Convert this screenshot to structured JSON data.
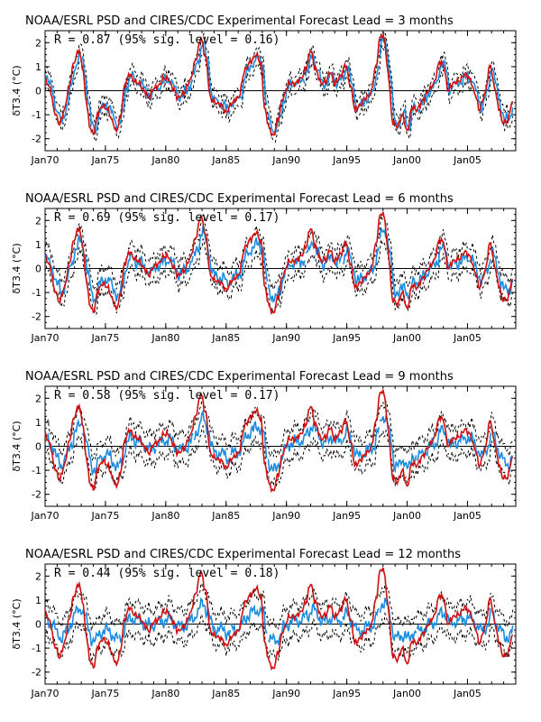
{
  "chart_data": [
    {
      "type": "line",
      "title": "NOAA/ESRL PSD and CIRES/CDC Experimental Forecast Lead = 3 months",
      "annotation": "R = 0.87 (95% sig. level = 0.16)",
      "lead_months": 3,
      "ylabel": "δT3.4 (°C)",
      "ylim": [
        -2.5,
        2.5
      ],
      "xlim": [
        1970,
        2009
      ],
      "xticks": [
        "Jan70",
        "Jan75",
        "Jan80",
        "Jan85",
        "Jan90",
        "Jan95",
        "Jan00",
        "Jan05"
      ],
      "yticks": [
        -2,
        -1,
        0,
        1,
        2
      ],
      "zero_line": true,
      "series": [
        {
          "role": "observed",
          "color": "#d01010"
        },
        {
          "role": "forecast",
          "color": "#1a8ce0",
          "skill": 0.92,
          "noise": 0.15
        },
        {
          "role": "uncertainty",
          "color": "#000000",
          "style": "dashed",
          "spread": 0.35
        }
      ]
    },
    {
      "type": "line",
      "title": "NOAA/ESRL PSD and CIRES/CDC Experimental Forecast Lead = 6 months",
      "annotation": "R = 0.69 (95% sig. level = 0.17)",
      "lead_months": 6,
      "ylabel": "δT3.4 (°C)",
      "ylim": [
        -2.5,
        2.5
      ],
      "xlim": [
        1970,
        2009
      ],
      "xticks": [
        "Jan70",
        "Jan75",
        "Jan80",
        "Jan85",
        "Jan90",
        "Jan95",
        "Jan00",
        "Jan05"
      ],
      "yticks": [
        -2,
        -1,
        0,
        1,
        2
      ],
      "zero_line": true,
      "series": [
        {
          "role": "observed",
          "color": "#d01010"
        },
        {
          "role": "forecast",
          "color": "#1a8ce0",
          "skill": 0.7,
          "noise": 0.22
        },
        {
          "role": "uncertainty",
          "color": "#000000",
          "style": "dashed",
          "spread": 0.5
        }
      ]
    },
    {
      "type": "line",
      "title": "NOAA/ESRL PSD and CIRES/CDC Experimental Forecast Lead = 9 months",
      "annotation": "R = 0.58 (95% sig. level = 0.17)",
      "lead_months": 9,
      "ylabel": "δT3.4 (°C)",
      "ylim": [
        -2.5,
        2.5
      ],
      "xlim": [
        1970,
        2009
      ],
      "xticks": [
        "Jan70",
        "Jan75",
        "Jan80",
        "Jan85",
        "Jan90",
        "Jan95",
        "Jan00",
        "Jan05"
      ],
      "yticks": [
        -2,
        -1,
        0,
        1,
        2
      ],
      "zero_line": true,
      "series": [
        {
          "role": "observed",
          "color": "#d01010"
        },
        {
          "role": "forecast",
          "color": "#1a8ce0",
          "skill": 0.55,
          "noise": 0.25
        },
        {
          "role": "uncertainty",
          "color": "#000000",
          "style": "dashed",
          "spread": 0.6
        }
      ]
    },
    {
      "type": "line",
      "title": "NOAA/ESRL PSD and CIRES/CDC Experimental Forecast Lead = 12 months",
      "annotation": "R = 0.44 (95% sig. level = 0.18)",
      "lead_months": 12,
      "ylabel": "δT3.4 (°C)",
      "ylim": [
        -2.5,
        2.5
      ],
      "xlim": [
        1970,
        2009
      ],
      "xticks": [
        "Jan70",
        "Jan75",
        "Jan80",
        "Jan85",
        "Jan90",
        "Jan95",
        "Jan00",
        "Jan05"
      ],
      "yticks": [
        -2,
        -1,
        0,
        1,
        2
      ],
      "zero_line": true,
      "series": [
        {
          "role": "observed",
          "color": "#d01010"
        },
        {
          "role": "forecast",
          "color": "#1a8ce0",
          "skill": 0.4,
          "noise": 0.25
        },
        {
          "role": "uncertainty",
          "color": "#000000",
          "style": "dashed",
          "spread": 0.65
        }
      ]
    }
  ],
  "observed_anomaly_keyframes": [
    [
      1970.0,
      0.5
    ],
    [
      1970.4,
      0.1
    ],
    [
      1970.8,
      -0.9
    ],
    [
      1971.2,
      -1.4
    ],
    [
      1971.6,
      -0.8
    ],
    [
      1972.0,
      0.2
    ],
    [
      1972.4,
      1.2
    ],
    [
      1972.8,
      1.7
    ],
    [
      1973.1,
      1.0
    ],
    [
      1973.4,
      -0.4
    ],
    [
      1973.7,
      -1.5
    ],
    [
      1974.0,
      -1.8
    ],
    [
      1974.4,
      -0.9
    ],
    [
      1974.8,
      -0.6
    ],
    [
      1975.2,
      -0.8
    ],
    [
      1975.6,
      -1.3
    ],
    [
      1975.9,
      -1.7
    ],
    [
      1976.2,
      -1.2
    ],
    [
      1976.6,
      0.2
    ],
    [
      1977.0,
      0.7
    ],
    [
      1977.4,
      0.4
    ],
    [
      1977.8,
      0.3
    ],
    [
      1978.2,
      0.0
    ],
    [
      1978.6,
      -0.3
    ],
    [
      1979.0,
      0.1
    ],
    [
      1979.4,
      0.2
    ],
    [
      1979.8,
      0.5
    ],
    [
      1980.2,
      0.5
    ],
    [
      1980.6,
      0.1
    ],
    [
      1981.0,
      -0.3
    ],
    [
      1981.5,
      -0.1
    ],
    [
      1982.0,
      0.4
    ],
    [
      1982.5,
      1.3
    ],
    [
      1982.9,
      2.2
    ],
    [
      1983.3,
      1.4
    ],
    [
      1983.7,
      -0.3
    ],
    [
      1984.1,
      -0.5
    ],
    [
      1984.6,
      -0.6
    ],
    [
      1985.0,
      -0.9
    ],
    [
      1985.5,
      -0.5
    ],
    [
      1986.0,
      -0.3
    ],
    [
      1986.6,
      0.9
    ],
    [
      1987.0,
      1.2
    ],
    [
      1987.5,
      1.5
    ],
    [
      1987.9,
      1.1
    ],
    [
      1988.2,
      -0.8
    ],
    [
      1988.6,
      -1.6
    ],
    [
      1988.9,
      -1.9
    ],
    [
      1989.3,
      -1.2
    ],
    [
      1989.7,
      -0.3
    ],
    [
      1990.2,
      0.3
    ],
    [
      1990.7,
      0.3
    ],
    [
      1991.2,
      0.5
    ],
    [
      1991.6,
      0.9
    ],
    [
      1992.0,
      1.7
    ],
    [
      1992.4,
      0.9
    ],
    [
      1992.9,
      0.3
    ],
    [
      1993.3,
      0.4
    ],
    [
      1993.6,
      0.8
    ],
    [
      1994.0,
      0.3
    ],
    [
      1994.5,
      0.6
    ],
    [
      1994.9,
      1.1
    ],
    [
      1995.3,
      0.2
    ],
    [
      1995.7,
      -0.8
    ],
    [
      1996.1,
      -0.6
    ],
    [
      1996.6,
      -0.3
    ],
    [
      1997.0,
      -0.1
    ],
    [
      1997.4,
      1.0
    ],
    [
      1997.8,
      2.3
    ],
    [
      1998.1,
      2.2
    ],
    [
      1998.4,
      0.8
    ],
    [
      1998.8,
      -1.3
    ],
    [
      1999.2,
      -1.5
    ],
    [
      1999.6,
      -1.0
    ],
    [
      2000.0,
      -1.7
    ],
    [
      2000.4,
      -0.7
    ],
    [
      2000.8,
      -0.8
    ],
    [
      2001.3,
      -0.4
    ],
    [
      2001.8,
      0.0
    ],
    [
      2002.2,
      0.3
    ],
    [
      2002.7,
      1.2
    ],
    [
      2003.0,
      1.1
    ],
    [
      2003.4,
      0.0
    ],
    [
      2003.8,
      0.3
    ],
    [
      2004.3,
      0.4
    ],
    [
      2004.8,
      0.7
    ],
    [
      2005.2,
      0.5
    ],
    [
      2005.6,
      -0.1
    ],
    [
      2006.0,
      -0.8
    ],
    [
      2006.4,
      -0.2
    ],
    [
      2006.9,
      1.1
    ],
    [
      2007.2,
      0.2
    ],
    [
      2007.6,
      -0.7
    ],
    [
      2007.9,
      -1.3
    ],
    [
      2008.3,
      -1.3
    ],
    [
      2008.7,
      -0.5
    ]
  ]
}
